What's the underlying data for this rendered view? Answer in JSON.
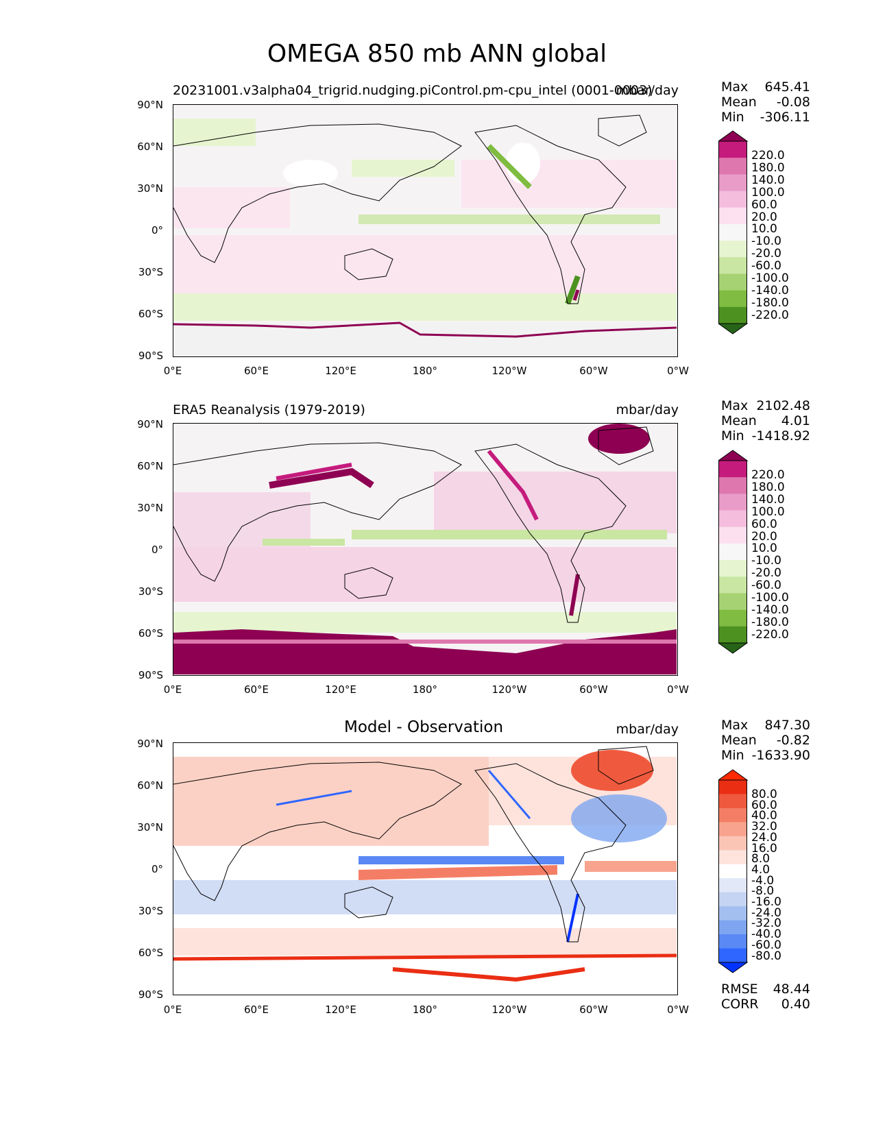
{
  "title": "OMEGA 850 mb ANN global",
  "lat_labels": [
    "90°N",
    "60°N",
    "30°N",
    "0°",
    "30°S",
    "60°S",
    "90°S"
  ],
  "lon_labels": [
    "0°E",
    "60°E",
    "120°E",
    "180°",
    "120°W",
    "60°W",
    "0°W"
  ],
  "colors": {
    "colormap_full_field": [
      "#276419",
      "#4d9221",
      "#7fbc41",
      "#a7d273",
      "#c9e6a2",
      "#e6f5d0",
      "#f7f7f7",
      "#fde0ef",
      "#f4bddd",
      "#e99cc8",
      "#de77ae",
      "#c51b7d",
      "#8e0152"
    ],
    "colormap_difference": [
      "#0033ff",
      "#2f66ff",
      "#5a88f5",
      "#7ea6f0",
      "#a3bff0",
      "#c6d4f3",
      "#e2e8f8",
      "#ffffff",
      "#fde3dc",
      "#fbc5b6",
      "#f8a38e",
      "#f47e65",
      "#ef5a3e",
      "#ea2e14",
      "#ff2a00"
    ],
    "coastline": "#000000"
  },
  "panels": [
    {
      "id": "model",
      "title": "20231001.v3alpha04_trigrid.nudging.piControl.pm-cpu_intel (0001-0003)",
      "units": "mbar/day",
      "stats": [
        {
          "label": "Max",
          "value": "645.41"
        },
        {
          "label": "Mean",
          "value": "-0.08"
        },
        {
          "label": "Min",
          "value": "-306.11"
        }
      ],
      "colorbar_levels": [
        "220.0",
        "180.0",
        "140.0",
        "100.0",
        "60.0",
        "20.0",
        "10.0",
        "-10.0",
        "-20.0",
        "-60.0",
        "-100.0",
        "-140.0",
        "-180.0",
        "-220.0"
      ]
    },
    {
      "id": "observation",
      "title": "ERA5 Reanalysis (1979-2019)",
      "units": "mbar/day",
      "stats": [
        {
          "label": "Max",
          "value": "2102.48"
        },
        {
          "label": "Mean",
          "value": "4.01"
        },
        {
          "label": "Min",
          "value": "-1418.92"
        }
      ],
      "colorbar_levels": [
        "220.0",
        "180.0",
        "140.0",
        "100.0",
        "60.0",
        "20.0",
        "10.0",
        "-10.0",
        "-20.0",
        "-60.0",
        "-100.0",
        "-140.0",
        "-180.0",
        "-220.0"
      ]
    },
    {
      "id": "difference",
      "title": "Model - Observation",
      "units": "mbar/day",
      "stats": [
        {
          "label": "Max",
          "value": "847.30"
        },
        {
          "label": "Mean",
          "value": "-0.82"
        },
        {
          "label": "Min",
          "value": "-1633.90"
        }
      ],
      "extra_stats": [
        {
          "label": "RMSE",
          "value": "48.44"
        },
        {
          "label": "CORR",
          "value": "0.40"
        }
      ],
      "colorbar_levels": [
        "80.0",
        "60.0",
        "40.0",
        "32.0",
        "24.0",
        "16.0",
        "8.0",
        "4.0",
        "-4.0",
        "-8.0",
        "-16.0",
        "-24.0",
        "-32.0",
        "-40.0",
        "-60.0",
        "-80.0"
      ]
    }
  ]
}
